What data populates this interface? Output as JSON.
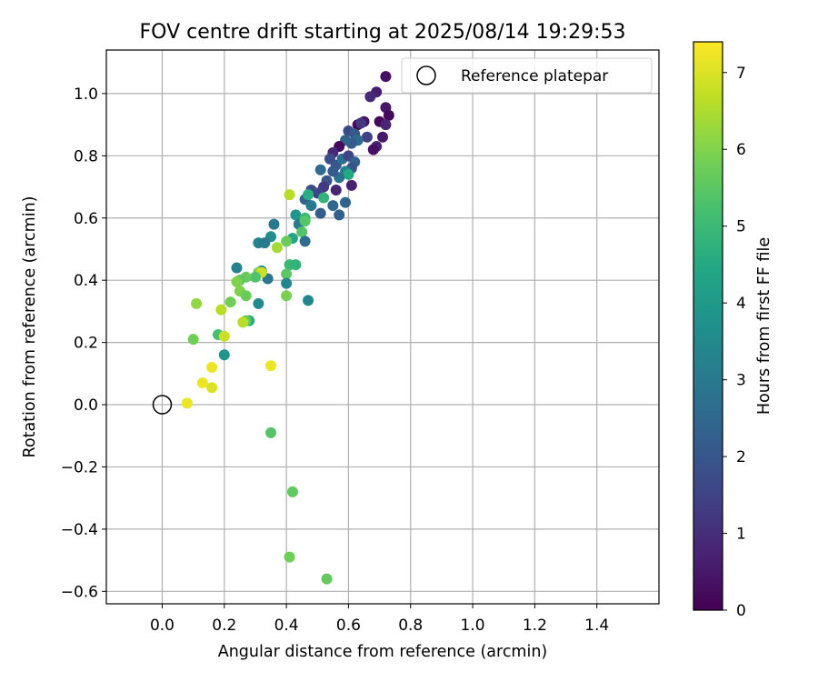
{
  "chart_data": {
    "type": "scatter",
    "title": "FOV centre drift starting at 2025/08/14 19:29:53",
    "xlabel": "Angular distance from reference (arcmin)",
    "ylabel": "Rotation from reference (arcmin)",
    "xlim": [
      -0.18,
      1.6
    ],
    "ylim": [
      -0.64,
      1.14
    ],
    "xticks": [
      0.0,
      0.2,
      0.4,
      0.6,
      0.8,
      1.0,
      1.2,
      1.4
    ],
    "xtick_labels": [
      "0.0",
      "0.2",
      "0.4",
      "0.6",
      "0.8",
      "1.0",
      "1.2",
      "1.4"
    ],
    "yticks": [
      -0.6,
      -0.4,
      -0.2,
      0.0,
      0.2,
      0.4,
      0.6,
      0.8,
      1.0
    ],
    "ytick_labels": [
      "−0.6",
      "−0.4",
      "−0.2",
      "0.0",
      "0.2",
      "0.4",
      "0.6",
      "0.8",
      "1.0"
    ],
    "grid": true,
    "legend": {
      "position": "top-right",
      "entries": [
        "Reference platepar"
      ]
    },
    "reference_point": {
      "x": 0.0,
      "y": 0.0
    },
    "colorbar": {
      "label": "Hours from first FF file",
      "range": [
        0,
        7.4
      ],
      "ticks": [
        0,
        1,
        2,
        3,
        4,
        5,
        6,
        7
      ],
      "tick_labels": [
        "0",
        "1",
        "2",
        "3",
        "4",
        "5",
        "6",
        "7"
      ],
      "colormap": "viridis"
    },
    "points": [
      [
        0.72,
        1.055,
        0.3
      ],
      [
        0.69,
        1.005,
        0.6
      ],
      [
        0.67,
        0.99,
        0.9
      ],
      [
        0.72,
        0.955,
        0.5
      ],
      [
        0.73,
        0.93,
        0.2
      ],
      [
        0.7,
        0.91,
        0.1
      ],
      [
        0.72,
        0.9,
        0.8
      ],
      [
        0.65,
        0.91,
        0.4
      ],
      [
        0.63,
        0.9,
        0.1
      ],
      [
        0.64,
        0.905,
        1.2
      ],
      [
        0.6,
        0.88,
        1.7
      ],
      [
        0.62,
        0.87,
        2.1
      ],
      [
        0.66,
        0.86,
        1.4
      ],
      [
        0.71,
        0.86,
        0.5
      ],
      [
        0.69,
        0.83,
        0.7
      ],
      [
        0.68,
        0.82,
        0.3
      ],
      [
        0.63,
        0.85,
        2.6
      ],
      [
        0.61,
        0.84,
        2.2
      ],
      [
        0.59,
        0.85,
        2.4
      ],
      [
        0.57,
        0.83,
        0.2
      ],
      [
        0.55,
        0.81,
        0.9
      ],
      [
        0.54,
        0.79,
        1.8
      ],
      [
        0.56,
        0.77,
        2.0
      ],
      [
        0.58,
        0.79,
        2.7
      ],
      [
        0.6,
        0.8,
        1.5
      ],
      [
        0.62,
        0.78,
        2.3
      ],
      [
        0.61,
        0.76,
        1.9
      ],
      [
        0.59,
        0.75,
        3.2
      ],
      [
        0.6,
        0.74,
        4.5
      ],
      [
        0.57,
        0.73,
        2.8
      ],
      [
        0.55,
        0.75,
        2.1
      ],
      [
        0.53,
        0.72,
        2.0
      ],
      [
        0.51,
        0.755,
        2.6
      ],
      [
        0.52,
        0.7,
        1.3
      ],
      [
        0.56,
        0.69,
        0.8
      ],
      [
        0.61,
        0.705,
        0.7
      ],
      [
        0.5,
        0.68,
        1.5
      ],
      [
        0.48,
        0.69,
        1.7
      ],
      [
        0.46,
        0.66,
        2.4
      ],
      [
        0.48,
        0.64,
        3.0
      ],
      [
        0.51,
        0.615,
        2.2
      ],
      [
        0.55,
        0.64,
        2.5
      ],
      [
        0.57,
        0.61,
        2.3
      ],
      [
        0.59,
        0.65,
        2.4
      ],
      [
        0.52,
        0.665,
        4.8
      ],
      [
        0.47,
        0.675,
        4.6
      ],
      [
        0.41,
        0.675,
        6.6
      ],
      [
        0.43,
        0.61,
        3.9
      ],
      [
        0.44,
        0.58,
        3.1
      ],
      [
        0.46,
        0.6,
        5.0
      ],
      [
        0.46,
        0.59,
        5.4
      ],
      [
        0.45,
        0.555,
        5.4
      ],
      [
        0.42,
        0.535,
        4.4
      ],
      [
        0.4,
        0.525,
        5.7
      ],
      [
        0.46,
        0.525,
        2.6
      ],
      [
        0.36,
        0.58,
        3.0
      ],
      [
        0.35,
        0.54,
        3.6
      ],
      [
        0.31,
        0.52,
        3.3
      ],
      [
        0.33,
        0.52,
        3.0
      ],
      [
        0.37,
        0.505,
        6.4
      ],
      [
        0.24,
        0.44,
        3.2
      ],
      [
        0.34,
        0.405,
        2.9
      ],
      [
        0.32,
        0.43,
        3.3
      ],
      [
        0.41,
        0.45,
        5.0
      ],
      [
        0.43,
        0.45,
        4.8
      ],
      [
        0.4,
        0.42,
        5.5
      ],
      [
        0.4,
        0.39,
        3.4
      ],
      [
        0.31,
        0.425,
        5.8
      ],
      [
        0.32,
        0.425,
        6.8
      ],
      [
        0.3,
        0.41,
        5.3
      ],
      [
        0.27,
        0.41,
        5.7
      ],
      [
        0.25,
        0.4,
        5.5
      ],
      [
        0.24,
        0.395,
        6.0
      ],
      [
        0.25,
        0.365,
        6.0
      ],
      [
        0.27,
        0.35,
        5.7
      ],
      [
        0.22,
        0.33,
        5.8
      ],
      [
        0.11,
        0.325,
        6.2
      ],
      [
        0.4,
        0.35,
        5.9
      ],
      [
        0.47,
        0.335,
        3.4
      ],
      [
        0.31,
        0.325,
        3.5
      ],
      [
        0.19,
        0.305,
        6.6
      ],
      [
        0.28,
        0.27,
        4.4
      ],
      [
        0.27,
        0.27,
        5.6
      ],
      [
        0.26,
        0.265,
        6.6
      ],
      [
        0.1,
        0.21,
        5.8
      ],
      [
        0.18,
        0.225,
        5.2
      ],
      [
        0.2,
        0.22,
        6.8
      ],
      [
        0.2,
        0.16,
        3.8
      ],
      [
        0.16,
        0.12,
        7.2
      ],
      [
        0.35,
        0.125,
        7.2
      ],
      [
        0.13,
        0.07,
        7.2
      ],
      [
        0.16,
        0.055,
        7.0
      ],
      [
        0.08,
        0.005,
        7.2
      ],
      [
        0.35,
        -0.09,
        5.4
      ],
      [
        0.42,
        -0.28,
        5.6
      ],
      [
        0.41,
        -0.49,
        5.8
      ],
      [
        0.53,
        -0.56,
        5.6
      ]
    ]
  }
}
